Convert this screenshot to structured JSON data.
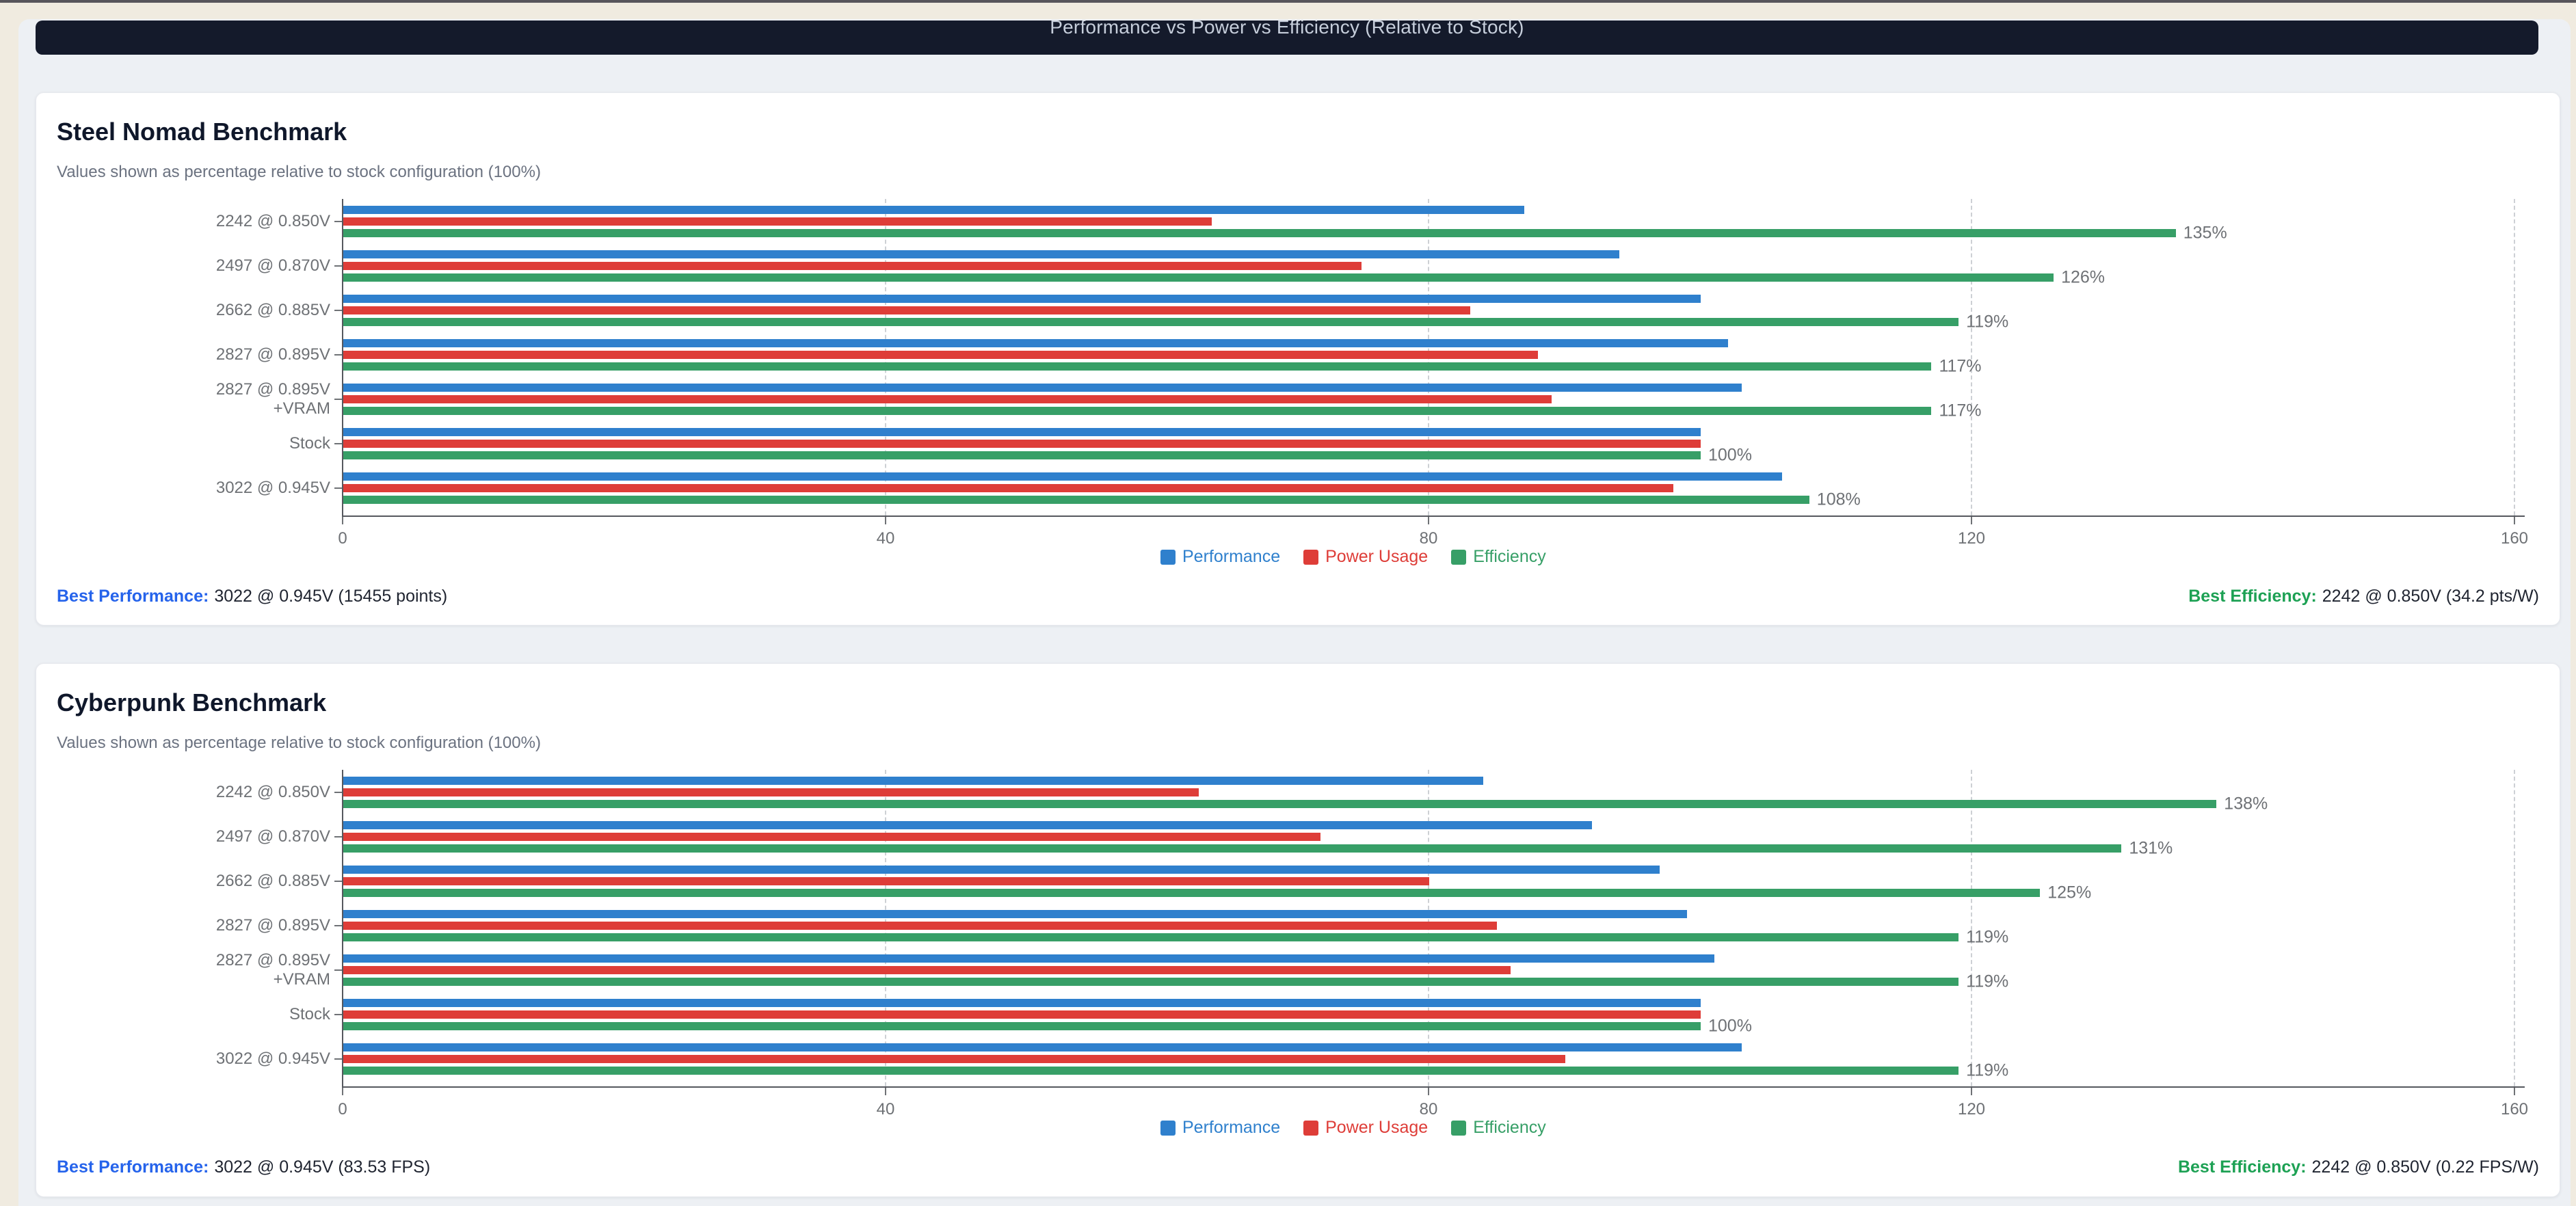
{
  "window": {
    "header_title": "Performance vs Power vs Efficiency (Relative to Stock)"
  },
  "accents": {
    "best_performance": "#2563eb",
    "best_efficiency": "#1da154"
  },
  "charts": [
    {
      "title": "Steel Nomad Benchmark",
      "subtitle": "Values shown as percentage relative to stock configuration (100%)",
      "chart_data": {
        "type": "bar",
        "orientation": "horizontal",
        "title": "Steel Nomad Benchmark",
        "categories": [
          "2242 @ 0.850V",
          "2497 @ 0.870V",
          "2662 @ 0.885V",
          "2827 @ 0.895V",
          "2827 @ 0.895V\n+VRAM",
          "Stock",
          "3022 @ 0.945V"
        ],
        "series": [
          {
            "name": "Performance",
            "color": "#2f80cd",
            "values": [
              87,
              94,
              100,
              102,
              103,
              100,
              106
            ]
          },
          {
            "name": "Power Usage",
            "color": "#de3d38",
            "values": [
              64,
              75,
              83,
              88,
              89,
              100,
              98
            ]
          },
          {
            "name": "Efficiency",
            "color": "#379f67",
            "values": [
              135,
              126,
              119,
              117,
              117,
              100,
              108
            ],
            "labels": [
              "135%",
              "126%",
              "119%",
              "117%",
              "117%",
              "100%",
              "108%"
            ]
          }
        ],
        "xlim": [
          0,
          160
        ],
        "xticks": [
          0,
          40,
          80,
          120,
          160
        ],
        "grid": "dashed-vertical",
        "legend_position": "bottom"
      },
      "legend": [
        {
          "label": "Performance"
        },
        {
          "label": "Power Usage"
        },
        {
          "label": "Efficiency"
        }
      ],
      "stats": {
        "best_performance_label": "Best Performance:",
        "best_performance_value": "3022 @ 0.945V (15455 points)",
        "best_efficiency_label": "Best Efficiency:",
        "best_efficiency_value": "2242 @ 0.850V (34.2 pts/W)"
      }
    },
    {
      "title": "Cyberpunk Benchmark",
      "subtitle": "Values shown as percentage relative to stock configuration (100%)",
      "chart_data": {
        "type": "bar",
        "orientation": "horizontal",
        "title": "Cyberpunk Benchmark",
        "categories": [
          "2242 @ 0.850V",
          "2497 @ 0.870V",
          "2662 @ 0.885V",
          "2827 @ 0.895V",
          "2827 @ 0.895V\n+VRAM",
          "Stock",
          "3022 @ 0.945V"
        ],
        "series": [
          {
            "name": "Performance",
            "color": "#2f80cd",
            "values": [
              84,
              92,
              97,
              99,
              101,
              100,
              103
            ]
          },
          {
            "name": "Power Usage",
            "color": "#de3d38",
            "values": [
              63,
              72,
              80,
              85,
              86,
              100,
              90
            ]
          },
          {
            "name": "Efficiency",
            "color": "#379f67",
            "values": [
              138,
              131,
              125,
              119,
              119,
              100,
              119
            ],
            "labels": [
              "138%",
              "131%",
              "125%",
              "119%",
              "119%",
              "100%",
              "119%"
            ]
          }
        ],
        "xlim": [
          0,
          160
        ],
        "xticks": [
          0,
          40,
          80,
          120,
          160
        ],
        "grid": "dashed-vertical",
        "legend_position": "bottom"
      },
      "legend": [
        {
          "label": "Performance"
        },
        {
          "label": "Power Usage"
        },
        {
          "label": "Efficiency"
        }
      ],
      "stats": {
        "best_performance_label": "Best Performance:",
        "best_performance_value": "3022 @ 0.945V (83.53 FPS)",
        "best_efficiency_label": "Best Efficiency:",
        "best_efficiency_value": "2242 @ 0.850V (0.22 FPS/W)"
      }
    }
  ]
}
